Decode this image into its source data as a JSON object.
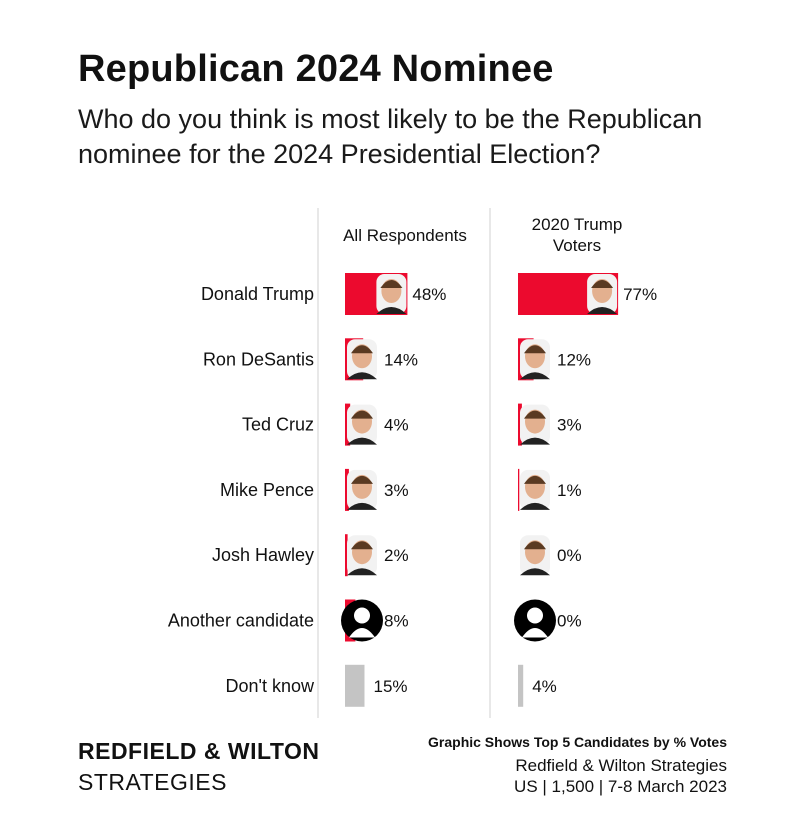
{
  "header": {
    "title": "Republican 2024 Nominee",
    "subtitle": "Who do you think is most likely to be the Republican nominee for the 2024 Presidential Election?"
  },
  "chart_data": {
    "type": "bar",
    "orientation": "horizontal",
    "categories": [
      "Donald Trump",
      "Ron DeSantis",
      "Ted Cruz",
      "Mike Pence",
      "Josh Hawley",
      "Another candidate",
      "Don't know"
    ],
    "series": [
      {
        "name": "All Respondents",
        "values": [
          48,
          14,
          4,
          3,
          2,
          8,
          15
        ],
        "labels": [
          "48%",
          "14%",
          "4%",
          "3%",
          "2%",
          "8%",
          "15%"
        ]
      },
      {
        "name": "2020 Trump Voters",
        "values": [
          77,
          12,
          3,
          1,
          0,
          0,
          4
        ],
        "labels": [
          "77%",
          "12%",
          "3%",
          "1%",
          "0%",
          "0%",
          "4%"
        ]
      }
    ],
    "column_headers": [
      [
        "All Respondents"
      ],
      [
        "2020 Trump",
        "Voters"
      ]
    ],
    "icons": [
      "portrait-icon",
      "portrait-icon",
      "portrait-icon",
      "portrait-icon",
      "portrait-icon",
      "silhouette-icon",
      null
    ],
    "colors": {
      "bar": "#ec0a2e",
      "dont_know": "#c4c4c4",
      "divider": "#d0d0d0"
    },
    "xlim": [
      0,
      100
    ]
  },
  "brand": {
    "name": "REDFIELD & WILTON",
    "sub": "STRATEGIES"
  },
  "footer": {
    "note": "Graphic Shows Top 5 Candidates by % Votes",
    "source": "Redfield & Wilton Strategies",
    "sample": "US | 1,500 | 7-8 March 2023"
  }
}
